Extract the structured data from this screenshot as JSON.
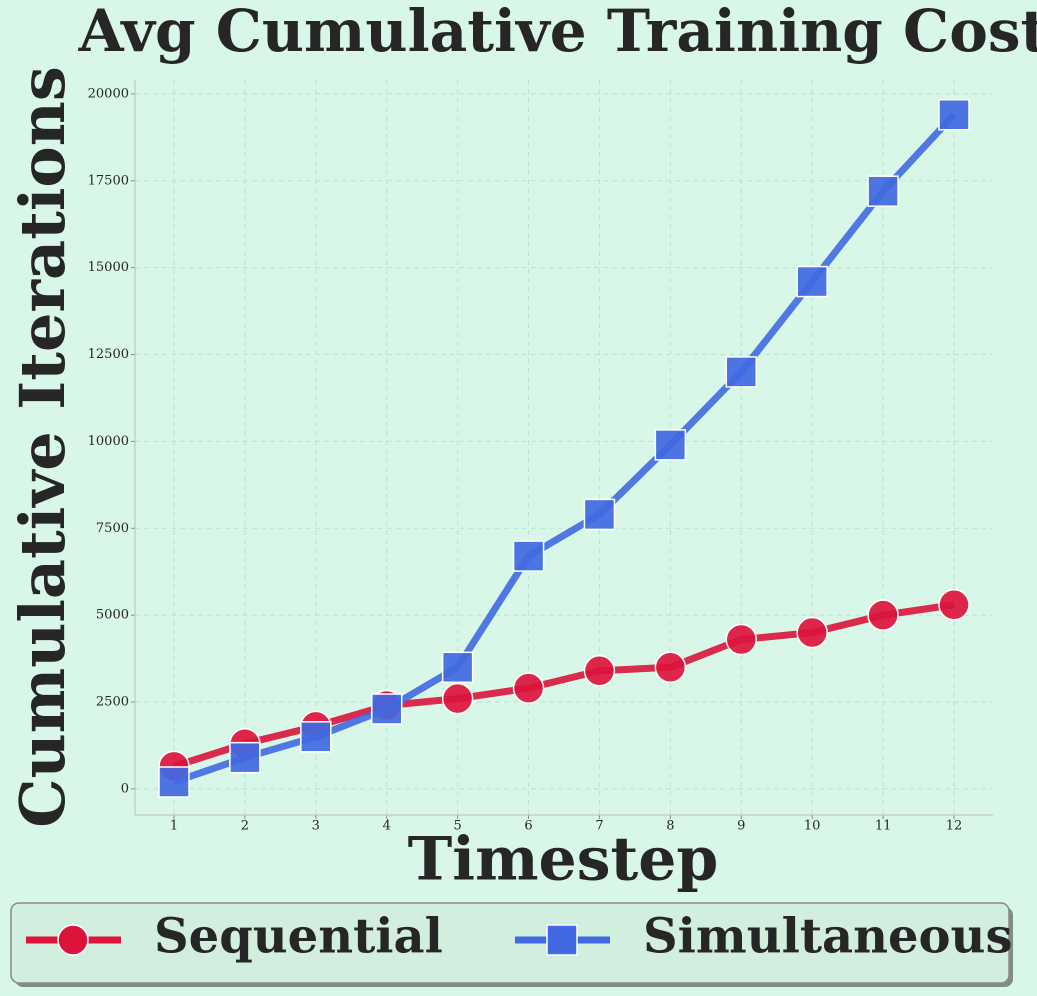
{
  "chart_data": {
    "type": "line",
    "title": "Avg Cumulative Training Cost",
    "xlabel": "Timestep",
    "ylabel": "Cumulative Iterations",
    "x": [
      1,
      2,
      3,
      4,
      5,
      6,
      7,
      8,
      9,
      10,
      11,
      12
    ],
    "series": [
      {
        "name": "Sequential",
        "color": "#dc143c",
        "marker": "circle",
        "values": [
          650,
          1300,
          1800,
          2400,
          2600,
          2900,
          3400,
          3500,
          4300,
          4500,
          5000,
          5300
        ]
      },
      {
        "name": "Simultaneous",
        "color": "#4169e1",
        "marker": "square",
        "values": [
          200,
          900,
          1500,
          2300,
          3500,
          6700,
          7900,
          9900,
          12000,
          14600,
          17200,
          19400
        ]
      }
    ],
    "xlim": [
      0.45,
      12.55
    ],
    "ylim": [
      -750,
      20400
    ],
    "xticks": [
      1,
      2,
      3,
      4,
      5,
      6,
      7,
      8,
      9,
      10,
      11,
      12
    ],
    "yticks": [
      0,
      2500,
      5000,
      7500,
      10000,
      12500,
      15000,
      17500,
      20000
    ],
    "grid": true,
    "legend": "bottom"
  }
}
